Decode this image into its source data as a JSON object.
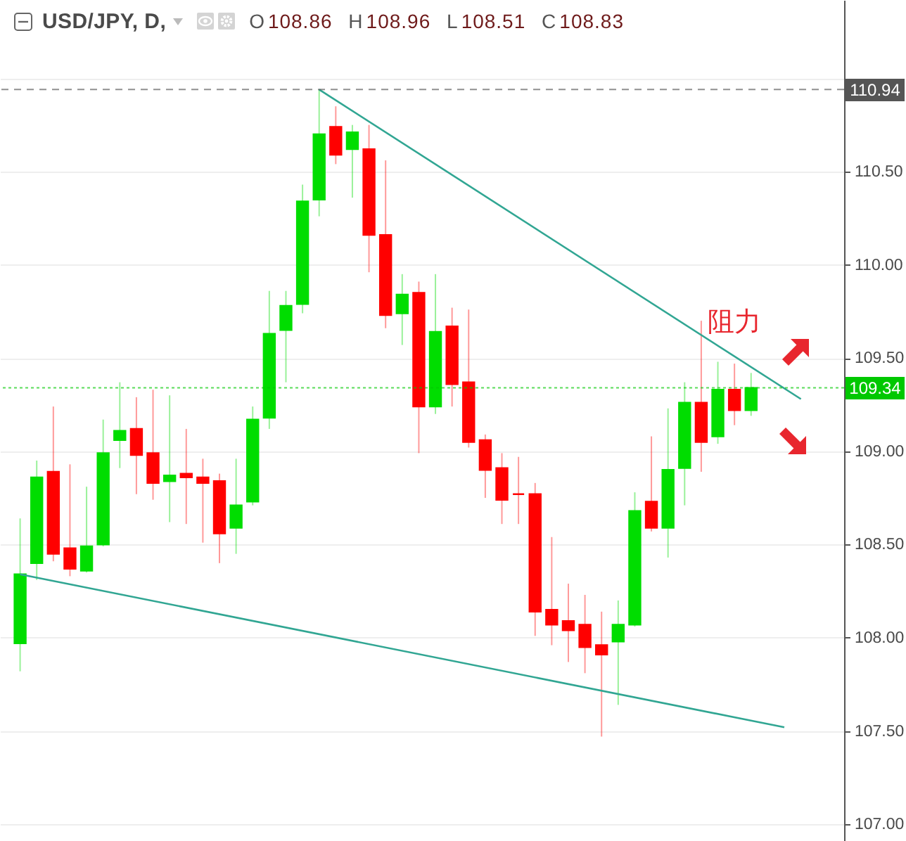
{
  "chart_data": {
    "type": "candlestick",
    "title": "USD/JPY, D,",
    "subtitle": "O108.86 H108.96 L108.51 C108.83",
    "categories": [
      null,
      null,
      null,
      null,
      null,
      null,
      null,
      null,
      null,
      null,
      null,
      null,
      null,
      null,
      null,
      null,
      null,
      null,
      null,
      null,
      null,
      null,
      null,
      null,
      null,
      null,
      null,
      null,
      null,
      null,
      null,
      null,
      null,
      null,
      null,
      null,
      null,
      null,
      null,
      null,
      null,
      null,
      null,
      null,
      null,
      null,
      null,
      null,
      null,
      null
    ],
    "ohlc": [
      [
        107.97,
        108.64,
        107.82,
        108.34
      ],
      [
        108.4,
        108.95,
        108.31,
        108.86
      ],
      [
        108.89,
        109.24,
        108.41,
        108.45
      ],
      [
        108.48,
        108.93,
        108.33,
        108.37
      ],
      [
        108.36,
        108.81,
        108.35,
        108.49
      ],
      [
        108.5,
        109.17,
        108.49,
        108.99
      ],
      [
        109.06,
        109.37,
        108.91,
        109.11
      ],
      [
        109.12,
        109.29,
        108.77,
        108.98
      ],
      [
        108.99,
        109.33,
        108.74,
        108.83
      ],
      [
        108.84,
        109.3,
        108.62,
        108.87
      ],
      [
        108.88,
        109.12,
        108.61,
        108.86
      ],
      [
        108.86,
        108.96,
        108.51,
        108.83
      ],
      [
        108.84,
        108.88,
        108.4,
        108.56
      ],
      [
        108.59,
        108.96,
        108.45,
        108.71
      ],
      [
        108.73,
        109.24,
        108.71,
        109.17
      ],
      [
        109.18,
        109.86,
        109.12,
        109.63
      ],
      [
        109.65,
        109.86,
        109.37,
        109.78
      ],
      [
        109.79,
        110.43,
        109.74,
        110.34
      ],
      [
        110.35,
        110.94,
        110.26,
        110.7
      ],
      [
        110.74,
        110.85,
        110.54,
        110.59
      ],
      [
        110.62,
        110.75,
        110.36,
        110.71
      ],
      [
        110.62,
        110.75,
        109.96,
        110.16
      ],
      [
        110.16,
        110.56,
        109.66,
        109.73
      ],
      [
        109.74,
        109.95,
        109.57,
        109.84
      ],
      [
        109.85,
        109.91,
        108.99,
        109.24
      ],
      [
        109.24,
        109.95,
        109.2,
        109.64
      ],
      [
        109.67,
        109.77,
        109.24,
        109.36
      ],
      [
        109.37,
        109.76,
        109.02,
        109.05
      ],
      [
        109.06,
        109.09,
        108.75,
        108.9
      ],
      [
        108.91,
        108.99,
        108.61,
        108.74
      ],
      [
        108.77,
        108.97,
        108.61,
        108.77
      ],
      [
        108.77,
        108.83,
        108.01,
        108.14
      ],
      [
        108.15,
        108.54,
        107.96,
        108.07
      ],
      [
        108.09,
        108.29,
        107.87,
        108.04
      ],
      [
        108.07,
        108.23,
        107.81,
        107.95
      ],
      [
        107.96,
        108.14,
        107.47,
        107.91
      ],
      [
        107.98,
        108.2,
        107.64,
        108.07
      ],
      [
        108.07,
        108.78,
        108.06,
        108.68
      ],
      [
        108.73,
        109.08,
        108.57,
        108.59
      ],
      [
        108.59,
        109.23,
        108.43,
        108.9
      ],
      [
        108.91,
        109.37,
        108.71,
        109.26
      ],
      [
        109.26,
        109.7,
        108.89,
        109.05
      ],
      [
        109.08,
        109.48,
        109.04,
        109.33
      ],
      [
        109.33,
        109.47,
        109.14,
        109.22
      ],
      [
        109.22,
        109.42,
        109.19,
        109.34
      ],
      null,
      null,
      null,
      null,
      null
    ],
    "colors": [
      "#00dd00",
      "#00dd00",
      "#ff0000",
      "#ff0000",
      "#00dd00",
      "#00dd00",
      "#00dd00",
      "#ff0000",
      "#ff0000",
      "#00dd00",
      "#ff0000",
      "#ff0000",
      "#ff0000",
      "#00dd00",
      "#00dd00",
      "#00dd00",
      "#00dd00",
      "#00dd00",
      "#00dd00",
      "#ff0000",
      "#00dd00",
      "#ff0000",
      "#ff0000",
      "#00dd00",
      "#ff0000",
      "#00dd00",
      "#ff0000",
      "#ff0000",
      "#ff0000",
      "#ff0000",
      "#ff0000",
      "#ff0000",
      "#ff0000",
      "#ff0000",
      "#ff0000",
      "#ff0000",
      "#00dd00",
      "#00dd00",
      "#ff0000",
      "#00dd00",
      "#00dd00",
      "#ff0000",
      "#00dd00",
      "#ff0000",
      "#00dd00",
      null,
      null,
      null,
      null,
      null
    ],
    "series": [
      {
        "type": "line",
        "color": "#31a693",
        "values": [
          null,
          null,
          null,
          null,
          null,
          null,
          null,
          null,
          null,
          null,
          null,
          null,
          null,
          null,
          null,
          null,
          null,
          null,
          110.94,
          null,
          null,
          null,
          null,
          null,
          null,
          null,
          null,
          null,
          null,
          null,
          null,
          null,
          null,
          null,
          null,
          null,
          null,
          null,
          null,
          null,
          null,
          null,
          null,
          null,
          null,
          null,
          null,
          109.28,
          null,
          null
        ]
      },
      {
        "type": "line",
        "color": "#31a693",
        "values": [
          108.34,
          null,
          null,
          null,
          null,
          null,
          null,
          null,
          null,
          null,
          null,
          null,
          null,
          null,
          null,
          null,
          null,
          null,
          null,
          null,
          null,
          null,
          null,
          null,
          null,
          null,
          null,
          null,
          null,
          null,
          null,
          null,
          null,
          null,
          null,
          null,
          null,
          null,
          null,
          null,
          null,
          null,
          null,
          null,
          null,
          null,
          107.52,
          null,
          null,
          null
        ]
      }
    ],
    "ylim": [
      106.91,
      111.42
    ],
    "yticks": [
      {
        "value": 107,
        "label": "107.00"
      },
      {
        "value": 107.5,
        "label": "107.50"
      },
      {
        "value": 108,
        "label": "108.00"
      },
      {
        "value": 108.5,
        "label": "108.50"
      },
      {
        "value": 109,
        "label": "109.00"
      },
      {
        "value": 109.5,
        "label": "109.50"
      },
      {
        "value": 110,
        "label": "110.00"
      },
      {
        "value": 110.5,
        "label": "110.50"
      },
      {
        "value": 111,
        "label": null
      }
    ],
    "ref_lines": [
      {
        "axis": "y",
        "value": 110.94,
        "label": "110.94",
        "color": "#555555",
        "line_style": "dashed"
      },
      {
        "axis": "y",
        "value": 109.34,
        "label": "109.34",
        "color": "#00c800",
        "line_style": "dotted"
      }
    ],
    "annotations": [
      "阻力"
    ],
    "grid": "y",
    "tick_labels": "y"
  }
}
